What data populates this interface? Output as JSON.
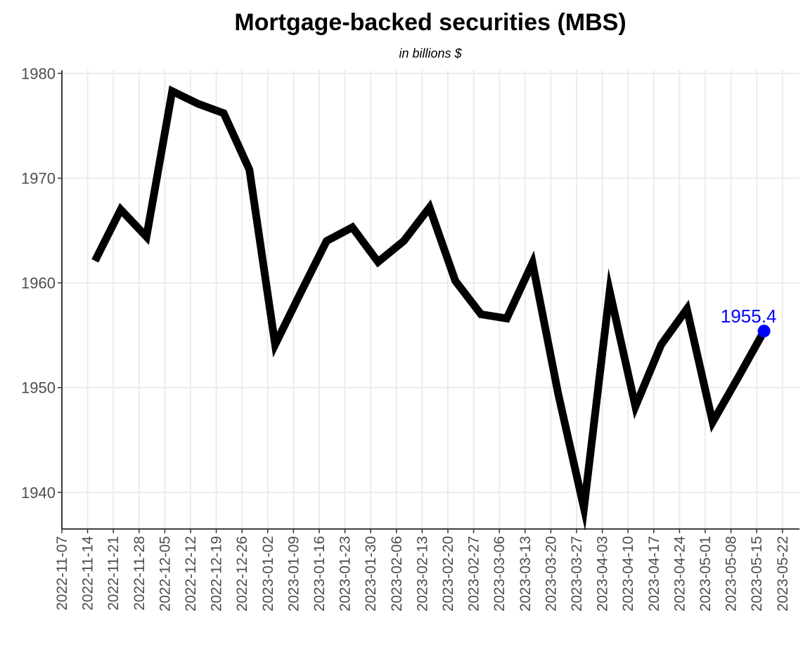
{
  "chart_data": {
    "type": "line",
    "title": "Mortgage-backed securities (MBS)",
    "subtitle": "in billions $",
    "xlabel": "",
    "ylabel": "",
    "xlim": [
      "2022-11-07",
      "2023-05-22"
    ],
    "ylim": [
      1936.5,
      1980.3
    ],
    "y_ticks": [
      1940,
      1950,
      1960,
      1970,
      1980
    ],
    "x_ticks": [
      "2022-11-07",
      "2022-11-14",
      "2022-11-21",
      "2022-11-28",
      "2022-12-05",
      "2022-12-12",
      "2022-12-19",
      "2022-12-26",
      "2023-01-02",
      "2023-01-09",
      "2023-01-16",
      "2023-01-23",
      "2023-01-30",
      "2023-02-06",
      "2023-02-13",
      "2023-02-20",
      "2023-02-27",
      "2023-03-06",
      "2023-03-13",
      "2023-03-20",
      "2023-03-27",
      "2023-04-03",
      "2023-04-10",
      "2023-04-17",
      "2023-04-24",
      "2023-05-01",
      "2023-05-08",
      "2023-05-15",
      "2023-05-22"
    ],
    "grid": true,
    "legend": "none",
    "series": [
      {
        "color": "#000000",
        "points": [
          {
            "x": "2022-11-16",
            "y": 1962.1
          },
          {
            "x": "2022-11-23",
            "y": 1967.0
          },
          {
            "x": "2022-11-30",
            "y": 1964.4
          },
          {
            "x": "2022-12-07",
            "y": 1978.3
          },
          {
            "x": "2022-12-14",
            "y": 1977.1
          },
          {
            "x": "2022-12-21",
            "y": 1976.2
          },
          {
            "x": "2022-12-28",
            "y": 1970.8
          },
          {
            "x": "2023-01-04",
            "y": 1954.1
          },
          {
            "x": "2023-01-11",
            "y": 1959.1
          },
          {
            "x": "2023-01-18",
            "y": 1964.0
          },
          {
            "x": "2023-01-25",
            "y": 1965.3
          },
          {
            "x": "2023-02-01",
            "y": 1962.0
          },
          {
            "x": "2023-02-08",
            "y": 1964.0
          },
          {
            "x": "2023-02-15",
            "y": 1967.2
          },
          {
            "x": "2023-02-22",
            "y": 1960.2
          },
          {
            "x": "2023-03-01",
            "y": 1957.0
          },
          {
            "x": "2023-03-08",
            "y": 1956.6
          },
          {
            "x": "2023-03-15",
            "y": 1961.9
          },
          {
            "x": "2023-03-22",
            "y": 1949.4
          },
          {
            "x": "2023-03-29",
            "y": 1938.5
          },
          {
            "x": "2023-04-05",
            "y": 1959.2
          },
          {
            "x": "2023-04-12",
            "y": 1948.2
          },
          {
            "x": "2023-04-19",
            "y": 1954.1
          },
          {
            "x": "2023-04-26",
            "y": 1957.5
          },
          {
            "x": "2023-05-03",
            "y": 1946.7
          },
          {
            "x": "2023-05-10",
            "y": 1951.0
          },
          {
            "x": "2023-05-17",
            "y": 1955.4
          }
        ]
      }
    ],
    "last_point": {
      "x": "2023-05-17",
      "y": 1955.4,
      "label": "1955.4",
      "color": "#0000ff"
    }
  }
}
